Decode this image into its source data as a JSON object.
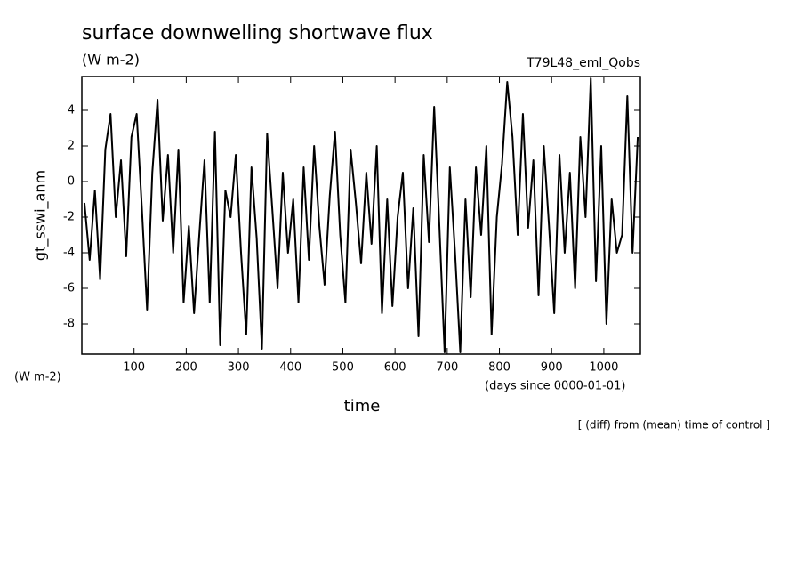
{
  "chart_data": {
    "type": "line",
    "title": "surface downwelling shortwave flux",
    "units": "(W m-2)",
    "run_label": "T79L48_eml_Qobs",
    "y_label": "gt_sswi_anm",
    "y_units": "(W m-2)",
    "x_label": "time",
    "x_units": "(days since 0000-01-01)",
    "note": "[ (diff) from (mean) time of control ]",
    "color": "#000000",
    "x": [
      5,
      15,
      25,
      35,
      45,
      55,
      65,
      75,
      85,
      95,
      105,
      115,
      125,
      135,
      145,
      155,
      165,
      175,
      185,
      195,
      205,
      215,
      225,
      235,
      245,
      255,
      265,
      275,
      285,
      295,
      305,
      315,
      325,
      335,
      345,
      355,
      365,
      375,
      385,
      395,
      405,
      415,
      425,
      435,
      445,
      455,
      465,
      475,
      485,
      495,
      505,
      515,
      525,
      535,
      545,
      555,
      565,
      575,
      585,
      595,
      605,
      615,
      625,
      635,
      645,
      655,
      665,
      675,
      685,
      695,
      705,
      715,
      725,
      735,
      745,
      755,
      765,
      775,
      785,
      795,
      805,
      815,
      825,
      835,
      845,
      855,
      865,
      875,
      885,
      895,
      905,
      915,
      925,
      935,
      945,
      955,
      965,
      975,
      985,
      995,
      1005,
      1015,
      1025,
      1035,
      1045,
      1055,
      1065
    ],
    "values": [
      -1.2,
      -4.4,
      -0.5,
      -5.5,
      1.8,
      3.8,
      -2,
      1.2,
      -4.2,
      2.5,
      3.8,
      -1.5,
      -7.2,
      0.5,
      4.6,
      -2.2,
      1.5,
      -4,
      1.8,
      -6.8,
      -2.5,
      -7.4,
      -3,
      1.2,
      -6.8,
      2.8,
      -9.2,
      -0.5,
      -2,
      1.5,
      -4,
      -8.6,
      0.8,
      -3.2,
      -9.4,
      2.7,
      -1.6,
      -6,
      0.5,
      -4,
      -1,
      -6.8,
      0.8,
      -4.4,
      2,
      -2.5,
      -5.8,
      -0.8,
      2.8,
      -3,
      -6.8,
      1.8,
      -1.2,
      -4.6,
      0.5,
      -3.5,
      2,
      -7.4,
      -1,
      -7,
      -2,
      0.5,
      -6,
      -1.5,
      -8.7,
      1.5,
      -3.4,
      4.2,
      -2.5,
      -9.6,
      0.8,
      -4,
      -9.6,
      -1,
      -6.5,
      0.8,
      -3,
      2,
      -8.6,
      -2,
      1,
      5.6,
      2.5,
      -3,
      3.8,
      -2.6,
      1.2,
      -6.4,
      2,
      -2.5,
      -7.4,
      1.5,
      -4,
      0.5,
      -6,
      2.5,
      -2,
      5.8,
      -5.6,
      2,
      -8,
      -1,
      -4,
      -3,
      4.8,
      -4,
      2.5
    ],
    "xlim": [
      0,
      1070
    ],
    "ylim": [
      -9.7,
      5.9
    ],
    "xticks": [
      100,
      200,
      300,
      400,
      500,
      600,
      700,
      800,
      900,
      1000
    ],
    "yticks": [
      -8,
      -6,
      -4,
      -2,
      0,
      2,
      4
    ]
  }
}
